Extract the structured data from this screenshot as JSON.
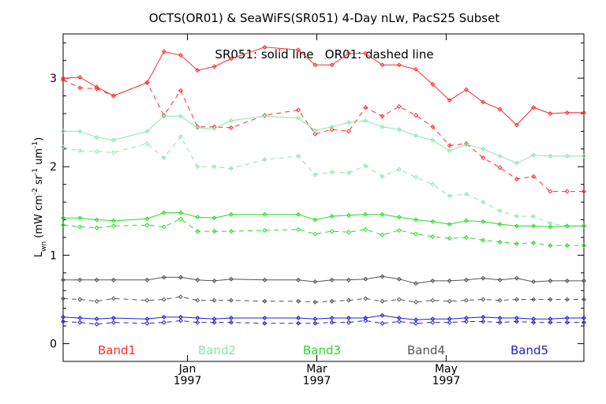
{
  "chart_data": {
    "type": "line",
    "title": "OCTS(OR01) & SeaWiFS(SR051) 4-Day nLw, PacS25 Subset",
    "annotation": "SR051: solid line   OR01: dashed line",
    "ylabel_parts": {
      "main": "L",
      "sub": "wn",
      "units": " (mW cm",
      "sup1": "-2",
      "mid1": " sr",
      "sup2": "-1",
      "mid2": " um",
      "sup3": "-1",
      "end": ")"
    },
    "ylim": [
      -0.2,
      3.5
    ],
    "yticks": [
      {
        "value": 0,
        "label": "0"
      },
      {
        "value": 1,
        "label": "1"
      },
      {
        "value": 2,
        "label": "2"
      },
      {
        "value": 3,
        "label": "3"
      }
    ],
    "xlim": [
      0,
      31
    ],
    "xticks": [
      {
        "value": 7.4,
        "label1": "Jan",
        "label2": "1997"
      },
      {
        "value": 15.1,
        "label1": "Mar",
        "label2": "1997"
      },
      {
        "value": 22.8,
        "label1": "May",
        "label2": "1997"
      }
    ],
    "x": [
      0,
      1,
      2,
      3,
      5,
      6,
      7,
      8,
      9,
      10,
      12,
      14,
      15,
      16,
      17,
      18,
      19,
      20,
      21,
      22,
      23,
      24,
      25,
      26,
      27,
      28,
      29,
      30,
      31
    ],
    "bands": [
      {
        "name": "Band1",
        "color": "#ff2a2a",
        "sr051": [
          3.0,
          3.01,
          2.9,
          2.8,
          2.95,
          3.3,
          3.26,
          3.09,
          3.13,
          3.22,
          3.35,
          3.32,
          3.15,
          3.15,
          3.28,
          3.28,
          3.15,
          3.15,
          3.1,
          2.93,
          2.75,
          2.87,
          2.73,
          2.65,
          2.47,
          2.67,
          2.6,
          2.61,
          2.61
        ],
        "or01": [
          2.98,
          2.89,
          2.88,
          2.8,
          2.95,
          2.58,
          2.86,
          2.45,
          2.45,
          2.44,
          2.58,
          2.64,
          2.37,
          2.42,
          2.4,
          2.67,
          2.57,
          2.68,
          2.58,
          2.45,
          2.24,
          2.26,
          2.1,
          1.99,
          1.86,
          1.89,
          1.72,
          1.72,
          1.72
        ]
      },
      {
        "name": "Band2",
        "color": "#88e8a8",
        "sr051": [
          2.4,
          2.4,
          2.33,
          2.3,
          2.4,
          2.57,
          2.57,
          2.44,
          2.43,
          2.52,
          2.57,
          2.55,
          2.41,
          2.45,
          2.5,
          2.52,
          2.45,
          2.42,
          2.35,
          2.3,
          2.18,
          2.25,
          2.2,
          2.12,
          2.04,
          2.13,
          2.12,
          2.12,
          2.12
        ],
        "or01": [
          2.22,
          2.18,
          2.17,
          2.16,
          2.26,
          2.1,
          2.34,
          2.0,
          2.0,
          1.98,
          2.08,
          2.12,
          1.91,
          1.94,
          1.93,
          2.01,
          1.89,
          1.97,
          1.88,
          1.8,
          1.67,
          1.69,
          1.6,
          1.5,
          1.44,
          1.44,
          1.36,
          1.33,
          1.33
        ]
      },
      {
        "name": "Band3",
        "color": "#22dd22",
        "sr051": [
          1.42,
          1.42,
          1.4,
          1.39,
          1.41,
          1.48,
          1.48,
          1.43,
          1.42,
          1.46,
          1.46,
          1.46,
          1.4,
          1.44,
          1.45,
          1.46,
          1.46,
          1.43,
          1.4,
          1.38,
          1.35,
          1.39,
          1.38,
          1.35,
          1.33,
          1.33,
          1.32,
          1.33,
          1.33
        ],
        "or01": [
          1.34,
          1.32,
          1.31,
          1.33,
          1.34,
          1.32,
          1.41,
          1.27,
          1.27,
          1.27,
          1.28,
          1.29,
          1.24,
          1.27,
          1.26,
          1.29,
          1.23,
          1.28,
          1.24,
          1.21,
          1.19,
          1.2,
          1.17,
          1.15,
          1.13,
          1.14,
          1.11,
          1.11,
          1.11
        ]
      },
      {
        "name": "Band4",
        "color": "#555555",
        "sr051": [
          0.72,
          0.72,
          0.72,
          0.72,
          0.72,
          0.75,
          0.75,
          0.72,
          0.71,
          0.73,
          0.72,
          0.72,
          0.7,
          0.72,
          0.72,
          0.73,
          0.76,
          0.73,
          0.68,
          0.71,
          0.71,
          0.72,
          0.74,
          0.72,
          0.74,
          0.7,
          0.71,
          0.71,
          0.71
        ],
        "or01": [
          0.51,
          0.5,
          0.48,
          0.51,
          0.49,
          0.5,
          0.53,
          0.49,
          0.49,
          0.49,
          0.48,
          0.48,
          0.47,
          0.48,
          0.49,
          0.51,
          0.48,
          0.5,
          0.47,
          0.49,
          0.48,
          0.49,
          0.5,
          0.49,
          0.5,
          0.5,
          0.5,
          0.5,
          0.5
        ]
      },
      {
        "name": "Band5",
        "color": "#2222cc",
        "sr051": [
          0.3,
          0.29,
          0.28,
          0.29,
          0.28,
          0.3,
          0.3,
          0.29,
          0.28,
          0.29,
          0.29,
          0.29,
          0.28,
          0.29,
          0.29,
          0.29,
          0.32,
          0.29,
          0.27,
          0.28,
          0.28,
          0.29,
          0.3,
          0.29,
          0.29,
          0.28,
          0.28,
          0.29,
          0.29
        ],
        "or01": [
          0.25,
          0.24,
          0.22,
          0.24,
          0.23,
          0.24,
          0.26,
          0.24,
          0.24,
          0.24,
          0.23,
          0.23,
          0.23,
          0.24,
          0.24,
          0.26,
          0.23,
          0.25,
          0.23,
          0.24,
          0.24,
          0.25,
          0.25,
          0.24,
          0.25,
          0.24,
          0.24,
          0.24,
          0.24
        ]
      }
    ],
    "grid": false
  }
}
